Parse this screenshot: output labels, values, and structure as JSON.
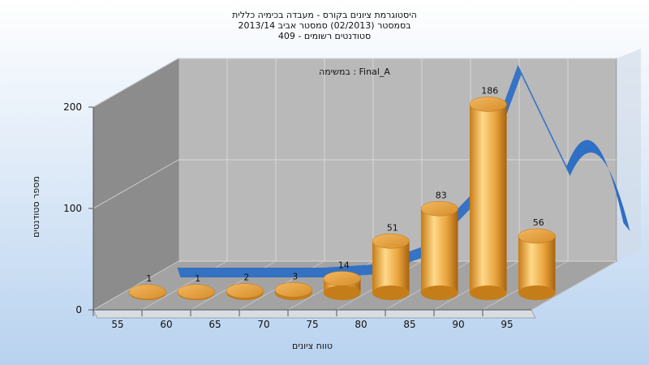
{
  "chart_data": {
    "type": "bar",
    "title_lines": [
      "היסטוגרמת ציונים בקורס - מעבדה בכימיה כללית",
      "בסמסטר  (02/2013)  סמסטר אביב 2013/14",
      "סטודנטים רשומים - 409"
    ],
    "subtitle": "במשימה : Final_A",
    "xlabel": "טווח ציונים",
    "ylabel": "מספר סטודנטים",
    "x_ticks": [
      "55",
      "60",
      "65",
      "70",
      "75",
      "80",
      "85",
      "90",
      "95"
    ],
    "y_ticks": [
      "0",
      "100",
      "200"
    ],
    "ylim": [
      0,
      200
    ],
    "bin_starts": [
      55,
      60,
      65,
      70,
      75,
      80,
      85,
      90,
      95
    ],
    "values": [
      1,
      1,
      2,
      3,
      14,
      51,
      83,
      186,
      56
    ],
    "curve_y": [
      0,
      0,
      0,
      0,
      3,
      20,
      70,
      200,
      100
    ],
    "bar_color": "#e8a33c",
    "curve_color": "#2f6fc4",
    "legend": "none",
    "grid": true
  }
}
